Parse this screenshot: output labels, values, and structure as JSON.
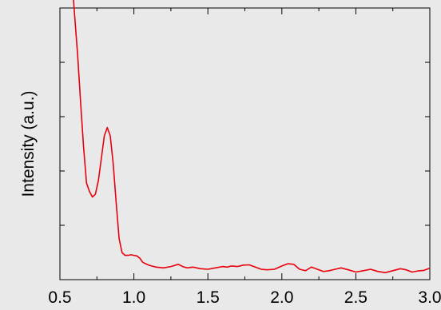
{
  "chart_data": {
    "type": "line",
    "title": "",
    "xlabel": "",
    "ylabel": "Intensity (a.u.)",
    "xlim": [
      0.5,
      3.0
    ],
    "ylim": [
      0,
      1
    ],
    "xticks": [
      0.5,
      1.0,
      1.5,
      2.0,
      2.5,
      3.0
    ],
    "xtick_labels": [
      "0.5",
      "1.0",
      "1.5",
      "2.0",
      "2.5",
      "3.0"
    ],
    "y_tick_labels_shown": false,
    "grid": false,
    "legend": "none",
    "colors": {
      "background": "#e9e9e9",
      "line": "#e8000b",
      "axes": "#000000"
    },
    "series": [
      {
        "x": [
          0.59,
          0.6,
          0.62,
          0.64,
          0.66,
          0.68,
          0.7,
          0.72,
          0.74,
          0.76,
          0.78,
          0.8,
          0.82,
          0.84,
          0.86,
          0.88,
          0.9,
          0.92,
          0.94,
          0.96,
          0.98,
          1.0,
          1.02,
          1.04,
          1.06,
          1.08,
          1.1,
          1.12,
          1.15,
          1.2,
          1.25,
          1.3,
          1.33,
          1.36,
          1.4,
          1.45,
          1.5,
          1.55,
          1.6,
          1.63,
          1.66,
          1.7,
          1.74,
          1.78,
          1.82,
          1.86,
          1.9,
          1.95,
          2.0,
          2.04,
          2.08,
          2.12,
          2.16,
          2.2,
          2.24,
          2.28,
          2.32,
          2.36,
          2.4,
          2.45,
          2.5,
          2.55,
          2.6,
          2.65,
          2.7,
          2.75,
          2.8,
          2.84,
          2.88,
          2.92,
          2.96,
          3.0
        ],
        "y": [
          1.0,
          0.93,
          0.79,
          0.62,
          0.46,
          0.33,
          0.3,
          0.28,
          0.29,
          0.34,
          0.42,
          0.5,
          0.53,
          0.5,
          0.4,
          0.26,
          0.13,
          0.08,
          0.07,
          0.07,
          0.072,
          0.07,
          0.068,
          0.06,
          0.045,
          0.04,
          0.035,
          0.032,
          0.028,
          0.025,
          0.03,
          0.038,
          0.03,
          0.025,
          0.028,
          0.022,
          0.02,
          0.025,
          0.03,
          0.028,
          0.032,
          0.03,
          0.035,
          0.036,
          0.028,
          0.02,
          0.018,
          0.02,
          0.032,
          0.04,
          0.038,
          0.02,
          0.015,
          0.028,
          0.02,
          0.012,
          0.015,
          0.02,
          0.025,
          0.018,
          0.01,
          0.015,
          0.02,
          0.012,
          0.008,
          0.015,
          0.022,
          0.018,
          0.01,
          0.014,
          0.016,
          0.024
        ]
      }
    ]
  }
}
